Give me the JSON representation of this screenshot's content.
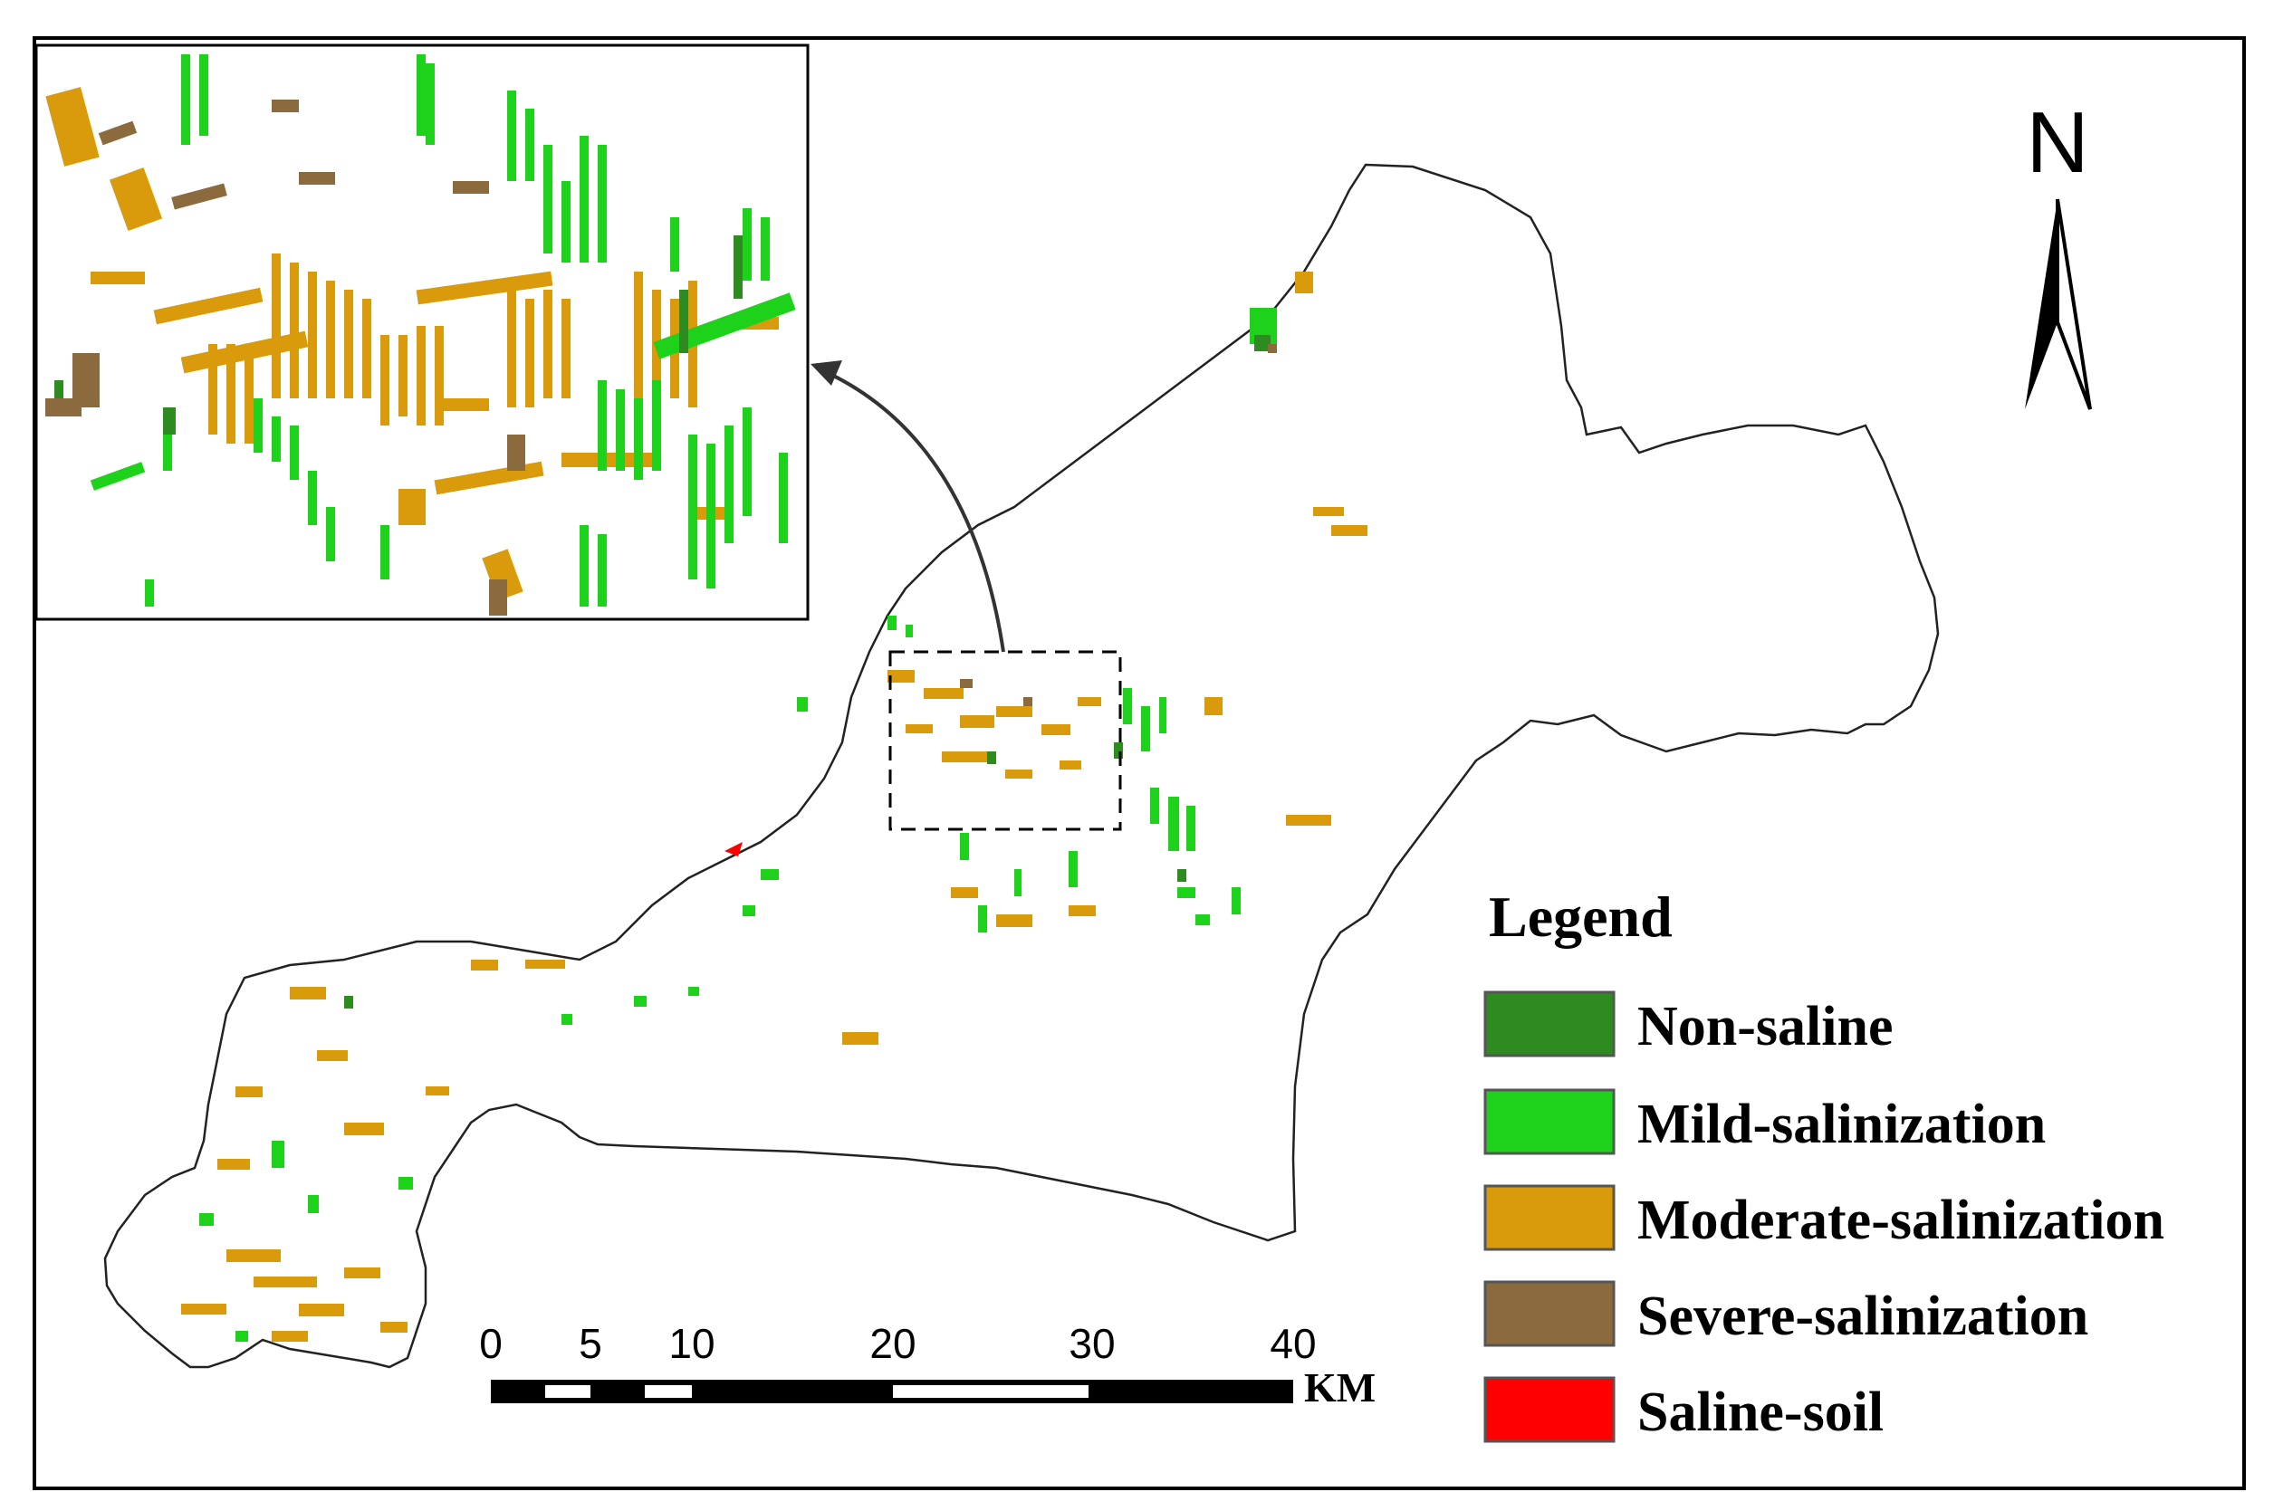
{
  "legend": {
    "title": "Legend",
    "items": [
      {
        "label": "Non-saline",
        "color": "#2e8b1f"
      },
      {
        "label": "Mild-salinization",
        "color": "#1ed11a"
      },
      {
        "label": "Moderate-salinization",
        "color": "#d99a0b"
      },
      {
        "label": "Severe-salinization",
        "color": "#8b6b3e"
      },
      {
        "label": "Saline-soil",
        "color": "#ff0000"
      }
    ]
  },
  "north_arrow": {
    "letter": "N"
  },
  "scale_bar": {
    "ticks": [
      "0",
      "5",
      "10",
      "20",
      "30",
      "40"
    ],
    "unit": "KM"
  },
  "inset": {
    "icon": "zoom-inset-arrow-icon"
  }
}
